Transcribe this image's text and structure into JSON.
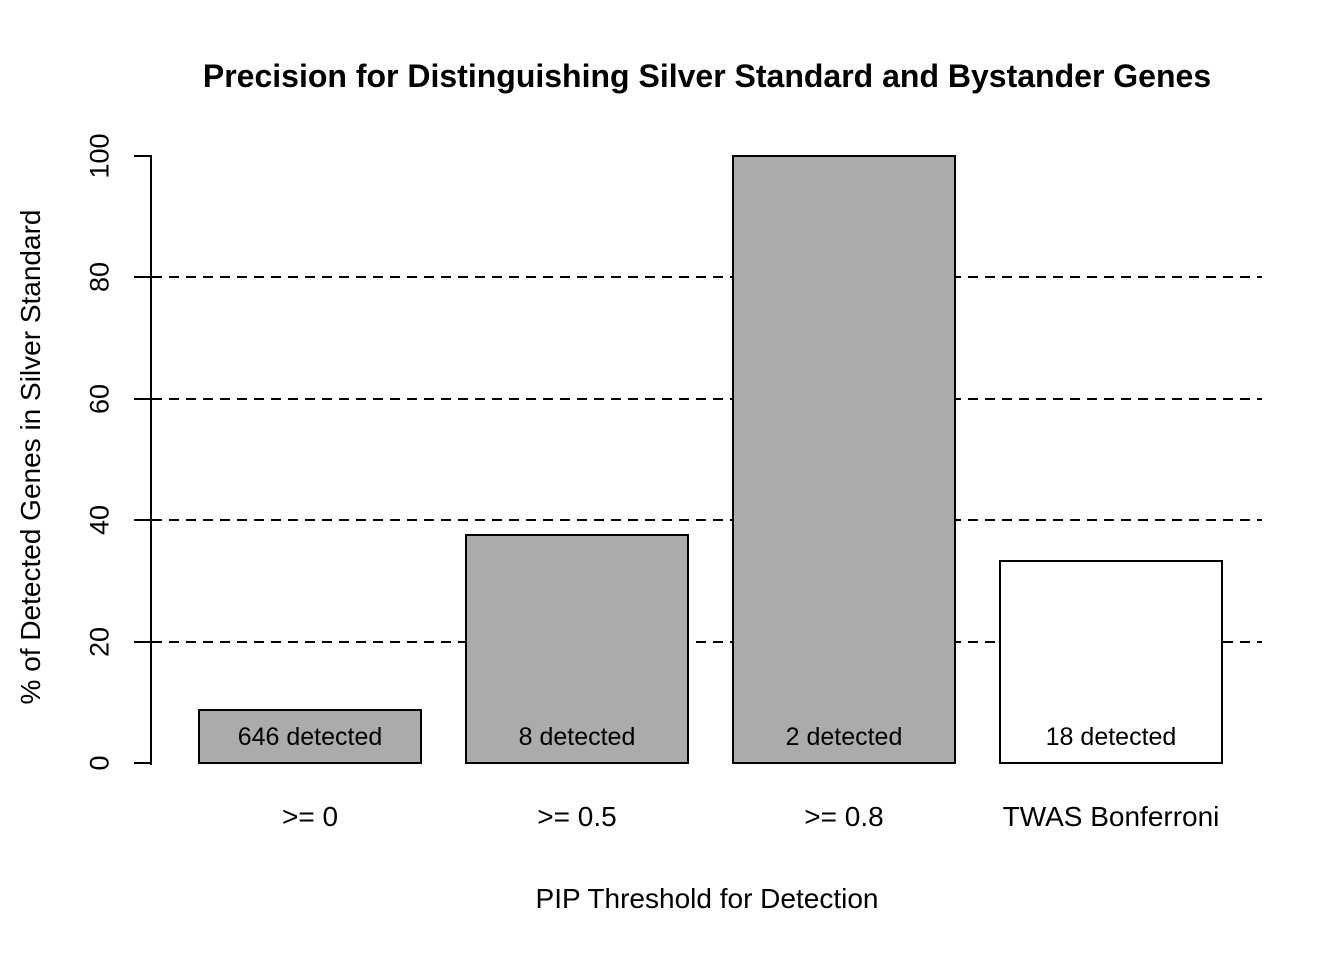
{
  "chart_data": {
    "type": "bar",
    "title": "Precision for Distinguishing Silver Standard and Bystander Genes",
    "xlabel": "PIP Threshold for Detection",
    "ylabel": "% of Detected Genes in Silver Standard",
    "categories": [
      ">= 0",
      ">= 0.5",
      ">= 0.8",
      "TWAS Bonferroni"
    ],
    "values": [
      8.8,
      37.5,
      100,
      33.3
    ],
    "bar_labels": [
      "646 detected",
      "8 detected",
      "2 detected",
      "18 detected"
    ],
    "detected_counts": [
      646,
      8,
      2,
      18
    ],
    "bar_colors": [
      "#ababab",
      "#ababab",
      "#ababab",
      "#ffffff"
    ],
    "bar_border_color": "#000000",
    "ylim": [
      0,
      100
    ],
    "yticks": [
      0,
      20,
      40,
      60,
      80,
      100
    ],
    "gridlines": [
      20,
      40,
      60,
      80
    ],
    "grid_style": "dashed",
    "legend": "none",
    "background_color": "#ffffff",
    "text_color": "#000000"
  }
}
